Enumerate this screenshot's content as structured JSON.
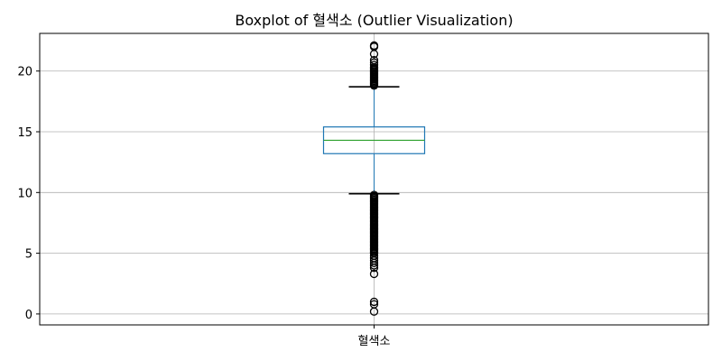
{
  "chart_data": {
    "type": "boxplot",
    "title": "Boxplot of 혈색소 (Outlier Visualization)",
    "xlabel": "",
    "ylabel": "",
    "categories": [
      "혈색소"
    ],
    "ylim": [
      -0.9,
      23.1
    ],
    "yticks": [
      0,
      5,
      10,
      15,
      20
    ],
    "grid": true,
    "colors": {
      "box": "#1f77b4",
      "whisker": "#1f77b4",
      "cap": "#000000",
      "median": "#2ca02c",
      "flier": "#000000",
      "grid": "#b0b0b0",
      "frame": "#000000"
    },
    "boxes": [
      {
        "name": "혈색소",
        "whisker_low": 9.9,
        "q1": 13.2,
        "median": 14.3,
        "q3": 15.4,
        "whisker_high": 18.7,
        "outliers_high": [
          18.8,
          18.9,
          19.0,
          19.1,
          19.2,
          19.3,
          19.4,
          19.5,
          19.6,
          19.7,
          19.8,
          19.9,
          20.0,
          20.1,
          20.2,
          20.3,
          20.5,
          20.7,
          20.9,
          21.4,
          22.0,
          22.1
        ],
        "outliers_low": [
          9.8,
          9.7,
          9.6,
          9.5,
          9.4,
          9.3,
          9.2,
          9.1,
          9.0,
          8.9,
          8.8,
          8.7,
          8.6,
          8.5,
          8.4,
          8.3,
          8.2,
          8.1,
          8.0,
          7.9,
          7.8,
          7.7,
          7.6,
          7.5,
          7.4,
          7.3,
          7.2,
          7.1,
          7.0,
          6.9,
          6.8,
          6.7,
          6.6,
          6.5,
          6.4,
          6.3,
          6.2,
          6.1,
          6.0,
          5.9,
          5.8,
          5.7,
          5.6,
          5.5,
          5.4,
          5.3,
          5.2,
          5.1,
          5.0,
          4.8,
          4.6,
          4.4,
          4.2,
          4.0,
          3.8,
          3.3,
          1.0,
          0.8,
          0.2
        ]
      }
    ]
  }
}
